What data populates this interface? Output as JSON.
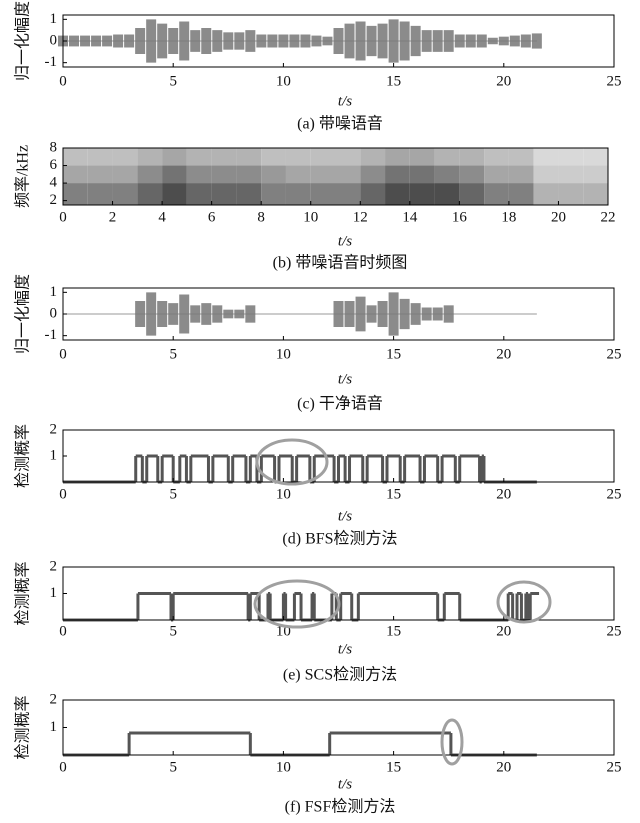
{
  "chart_data": [
    {
      "type": "waveform",
      "caption": "(a) 带噪语音",
      "ylabel": "归一化幅度",
      "xlabel": "t/s",
      "xlim": [
        0,
        25
      ],
      "xticks": [
        0,
        5,
        10,
        15,
        20,
        25
      ],
      "ylim": [
        -1.2,
        1.2
      ],
      "yticks": [
        -1,
        0,
        1
      ],
      "color": "#777777",
      "x": [
        0,
        0.5,
        1,
        1.5,
        2,
        2.5,
        3,
        3.5,
        4,
        4.5,
        5,
        5.5,
        6,
        6.5,
        7,
        7.5,
        8,
        8.5,
        9,
        9.5,
        10,
        10.5,
        11,
        11.5,
        12,
        12.5,
        13,
        13.5,
        14,
        14.5,
        15,
        15.5,
        16,
        16.5,
        17,
        17.5,
        18,
        18.5,
        19,
        19.5,
        20,
        20.5,
        21,
        21.5
      ],
      "values": [
        0.25,
        0.25,
        0.25,
        0.25,
        0.25,
        0.3,
        0.3,
        0.6,
        1,
        0.8,
        0.6,
        0.9,
        0.5,
        0.6,
        0.5,
        0.4,
        0.4,
        0.5,
        0.3,
        0.3,
        0.3,
        0.3,
        0.3,
        0.25,
        0.2,
        0.6,
        0.8,
        0.9,
        0.7,
        0.8,
        1,
        0.9,
        0.7,
        0.5,
        0.5,
        0.5,
        0.3,
        0.3,
        0.3,
        0.15,
        0.2,
        0.25,
        0.3,
        0.35
      ]
    },
    {
      "type": "heatmap",
      "caption": "(b) 带噪语音时频图",
      "ylabel": "频率/kHz",
      "xlabel": "t/s",
      "xlim": [
        0,
        22
      ],
      "xticks": [
        0,
        2,
        4,
        6,
        8,
        10,
        12,
        14,
        16,
        18,
        20,
        22
      ],
      "ylim": [
        1.5,
        8
      ],
      "yticks": [
        2,
        4,
        6,
        8
      ],
      "x_bins": [
        0,
        1,
        2,
        3,
        4,
        5,
        6,
        7,
        8,
        9,
        10,
        11,
        12,
        13,
        14,
        15,
        16,
        17,
        18,
        19,
        20,
        21,
        22
      ],
      "y_bins": [
        1.5,
        4,
        6,
        8
      ],
      "z": [
        [
          0.5,
          0.5,
          0.5,
          0.6,
          0.7,
          0.6,
          0.6,
          0.6,
          0.5,
          0.5,
          0.5,
          0.5,
          0.6,
          0.7,
          0.7,
          0.7,
          0.6,
          0.5,
          0.5,
          0.3,
          0.3,
          0.3
        ],
        [
          0.35,
          0.35,
          0.35,
          0.45,
          0.55,
          0.45,
          0.45,
          0.45,
          0.4,
          0.35,
          0.35,
          0.35,
          0.45,
          0.55,
          0.55,
          0.5,
          0.45,
          0.35,
          0.35,
          0.2,
          0.2,
          0.2
        ],
        [
          0.25,
          0.25,
          0.25,
          0.3,
          0.35,
          0.3,
          0.3,
          0.3,
          0.25,
          0.25,
          0.25,
          0.25,
          0.3,
          0.35,
          0.35,
          0.3,
          0.3,
          0.25,
          0.25,
          0.15,
          0.15,
          0.15
        ]
      ]
    },
    {
      "type": "waveform",
      "caption": "(c) 干净语音",
      "ylabel": "归一化幅度",
      "xlabel": "t/s",
      "xlim": [
        0,
        25
      ],
      "xticks": [
        0,
        5,
        10,
        15,
        20,
        25
      ],
      "ylim": [
        -1.2,
        1.2
      ],
      "yticks": [
        -1,
        0,
        1
      ],
      "color": "#777777",
      "x": [
        0,
        0.5,
        1,
        1.5,
        2,
        2.5,
        3,
        3.5,
        4,
        4.5,
        5,
        5.5,
        6,
        6.5,
        7,
        7.5,
        8,
        8.5,
        9,
        9.5,
        10,
        10.5,
        11,
        11.5,
        12,
        12.5,
        13,
        13.5,
        14,
        14.5,
        15,
        15.5,
        16,
        16.5,
        17,
        17.5,
        18,
        18.5,
        19,
        19.5,
        20,
        20.5,
        21,
        21.5
      ],
      "values": [
        0,
        0,
        0,
        0,
        0,
        0,
        0,
        0.6,
        1,
        0.6,
        0.5,
        0.9,
        0.4,
        0.5,
        0.4,
        0.2,
        0.2,
        0.4,
        0,
        0,
        0,
        0,
        0,
        0,
        0,
        0.6,
        0.6,
        0.8,
        0.4,
        0.6,
        1,
        0.7,
        0.5,
        0.3,
        0.3,
        0.4,
        0,
        0,
        0,
        0,
        0,
        0,
        0,
        0
      ]
    },
    {
      "type": "step",
      "caption": "(d) BFS检测方法",
      "ylabel": "检测概率",
      "xlabel": "t/s",
      "xlim": [
        0,
        25
      ],
      "xticks": [
        0,
        5,
        10,
        15,
        20,
        25
      ],
      "ylim": [
        0,
        2
      ],
      "yticks": [
        1,
        2
      ],
      "color": "#555555",
      "x": [
        0,
        3.3,
        3.6,
        3.8,
        4.3,
        4.5,
        5.0,
        5.3,
        5.6,
        5.8,
        6.6,
        6.8,
        7.5,
        7.7,
        8.3,
        8.5,
        8.8,
        9.0,
        9.6,
        9.8,
        10.4,
        10.6,
        11.2,
        11.4,
        12.3,
        12.5,
        12.8,
        13.0,
        13.6,
        13.8,
        14.5,
        14.7,
        15.3,
        15.5,
        16.2,
        16.4,
        17.0,
        17.2,
        17.8,
        18.0,
        18.9,
        19.0,
        19.1,
        21.5
      ],
      "values": [
        0,
        1,
        0,
        1,
        0,
        1,
        0,
        1,
        0,
        1,
        0,
        1,
        0,
        1,
        0,
        1,
        0,
        1,
        0,
        1,
        0,
        1,
        0,
        1,
        0,
        1,
        0,
        1,
        0,
        1,
        0,
        1,
        0,
        1,
        0,
        1,
        0,
        1,
        0,
        1,
        0,
        1,
        0,
        0
      ]
    },
    {
      "type": "step",
      "caption": "(e) SCS检测方法",
      "ylabel": "检测概率",
      "xlabel": "t/s",
      "xlim": [
        0,
        25
      ],
      "xticks": [
        0,
        5,
        10,
        15,
        20,
        25
      ],
      "ylim": [
        0,
        2
      ],
      "yticks": [
        1,
        2
      ],
      "color": "#555555",
      "x": [
        0,
        3.4,
        4.9,
        5.0,
        8.4,
        8.5,
        8.9,
        9.3,
        9.4,
        10.0,
        10.1,
        10.5,
        10.8,
        11.3,
        11.4,
        12.2,
        12.4,
        12.6,
        13.1,
        13.4,
        17.0,
        17.3,
        18.0,
        20.2,
        20.4,
        20.6,
        20.8,
        21.0,
        21.1,
        21.2,
        21.6
      ],
      "values": [
        0,
        1,
        0,
        1,
        0,
        1,
        0,
        1,
        0,
        1,
        0,
        1,
        0,
        1,
        0,
        1,
        0,
        1,
        0,
        1,
        0,
        1,
        0,
        1,
        0,
        1,
        0,
        1,
        0,
        1,
        0
      ]
    },
    {
      "type": "step",
      "caption": "(f) FSF检测方法",
      "ylabel": "检测概率",
      "xlabel": "t/s",
      "xlim": [
        0,
        25
      ],
      "xticks": [
        0,
        5,
        10,
        15,
        20,
        25
      ],
      "ylim": [
        0,
        2
      ],
      "yticks": [
        1,
        2
      ],
      "color": "#555555",
      "x": [
        0,
        3.0,
        8.5,
        12.1,
        17.6,
        21.5
      ],
      "values": [
        0,
        0.8,
        0,
        0.8,
        0,
        0
      ]
    }
  ]
}
